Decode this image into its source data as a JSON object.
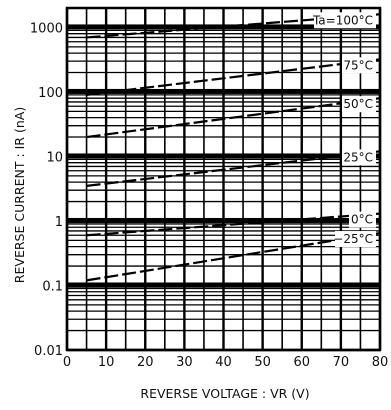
{
  "chart_data": {
    "type": "line",
    "xlabel": "REVERSE VOLTAGE : VR (V)",
    "ylabel": "REVERSE CURRENT : IR (nA)",
    "xlim": [
      0,
      80
    ],
    "ylim": [
      0.01,
      2000
    ],
    "y_scale": "log",
    "grid": true,
    "x_ticks": [
      "0",
      "10",
      "20",
      "30",
      "40",
      "50",
      "60",
      "70",
      "80"
    ],
    "y_ticks": [
      "0.01",
      "0.1",
      "1",
      "10",
      "100",
      "1000"
    ],
    "series": [
      {
        "name": "Ta=100°C",
        "x": [
          5,
          80
        ],
        "y": [
          700,
          1600
        ]
      },
      {
        "name": "75°C",
        "x": [
          5,
          80
        ],
        "y": [
          90,
          320
        ]
      },
      {
        "name": "50°C",
        "x": [
          5,
          80
        ],
        "y": [
          20,
          80
        ]
      },
      {
        "name": "25°C",
        "x": [
          5,
          80
        ],
        "y": [
          3.5,
          12
        ]
      },
      {
        "name": "0°C",
        "x": [
          5,
          80
        ],
        "y": [
          0.6,
          1.3
        ]
      },
      {
        "name": "−25°C",
        "x": [
          5,
          80
        ],
        "y": [
          0.12,
          0.65
        ]
      }
    ]
  }
}
